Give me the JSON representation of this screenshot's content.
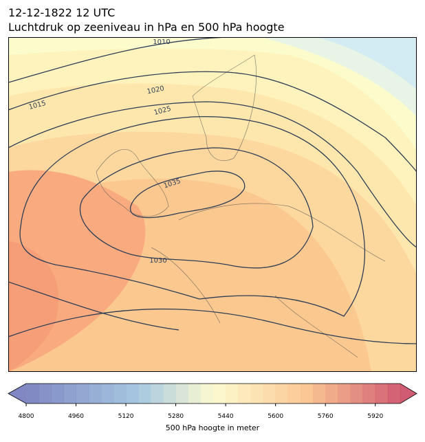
{
  "header": {
    "title": "12-12-1822 12 UTC",
    "subtitle": "Luchtdruk op zeeniveau in hPa en 500 hPa hoogte"
  },
  "map": {
    "contour_labels": [
      1010,
      1015,
      1020,
      1025,
      1035,
      1030
    ]
  },
  "colorbar": {
    "label": "500 hPa hoogte in meter",
    "range": [
      4800,
      6000
    ],
    "ticks": [
      4800,
      4960,
      5120,
      5280,
      5440,
      5600,
      5760,
      5920
    ]
  }
}
